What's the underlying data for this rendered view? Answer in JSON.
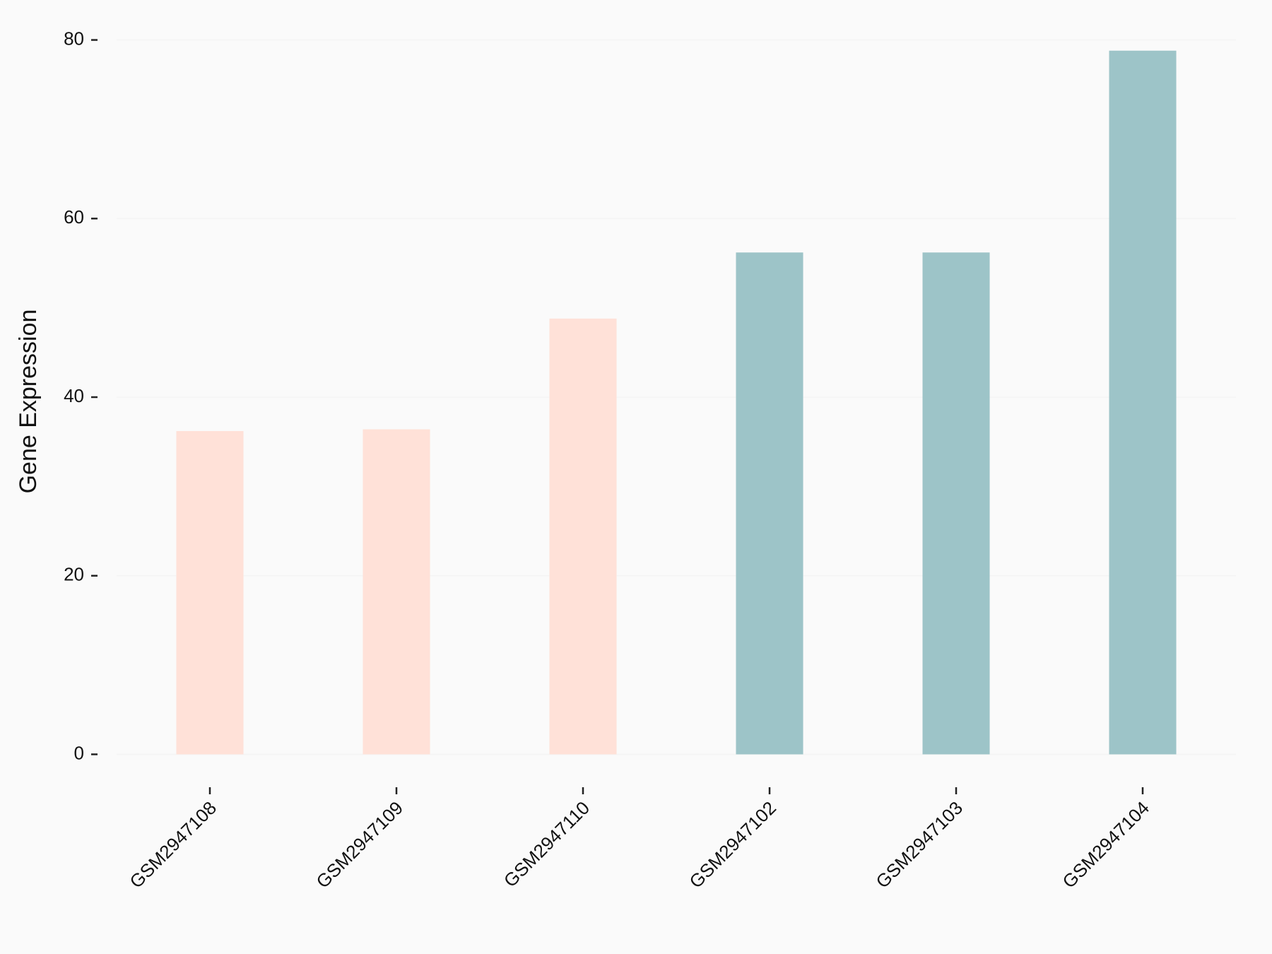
{
  "chart_data": {
    "type": "bar",
    "y_label": "Gene Expression",
    "categories": [
      "GSM2947108",
      "GSM2947109",
      "GSM2947110",
      "GSM2947102",
      "GSM2947103",
      "GSM2947104"
    ],
    "values": [
      36.2,
      36.4,
      48.8,
      56.2,
      56.2,
      78.8
    ],
    "colors": [
      "#FFE1D8",
      "#FFE1D8",
      "#FFE1D8",
      "#9DC4C8",
      "#9DC4C8",
      "#9DC4C8"
    ],
    "ylim": [
      -4,
      84
    ],
    "yticks": [
      0,
      20,
      40,
      60,
      80
    ],
    "grid": true
  }
}
